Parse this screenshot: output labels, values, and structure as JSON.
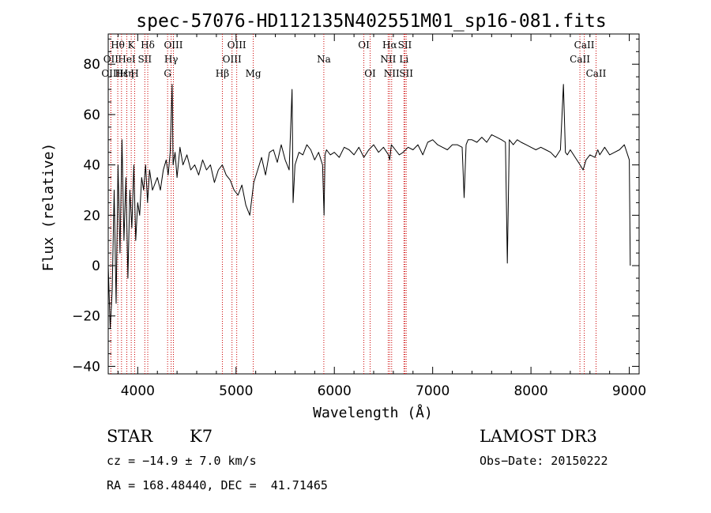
{
  "chart_data": {
    "type": "line",
    "title": "spec-57076-HD112135N402551M01_sp16-081.fits",
    "xlabel": "Wavelength (Å)",
    "ylabel": "Flux (relative)",
    "xlim": [
      3700,
      9100
    ],
    "ylim": [
      -43,
      92
    ],
    "xticks": [
      4000,
      5000,
      6000,
      7000,
      8000,
      9000
    ],
    "yticks": [
      -40,
      -20,
      0,
      20,
      40,
      60,
      80
    ],
    "series": [
      {
        "name": "flux",
        "x": [
          3700,
          3720,
          3740,
          3760,
          3780,
          3800,
          3820,
          3840,
          3860,
          3880,
          3900,
          3920,
          3940,
          3960,
          3980,
          4000,
          4020,
          4040,
          4060,
          4080,
          4100,
          4120,
          4150,
          4180,
          4200,
          4230,
          4260,
          4290,
          4310,
          4330,
          4350,
          4360,
          4380,
          4400,
          4430,
          4460,
          4500,
          4540,
          4580,
          4620,
          4660,
          4700,
          4740,
          4780,
          4820,
          4860,
          4900,
          4940,
          4980,
          5020,
          5060,
          5100,
          5140,
          5180,
          5220,
          5260,
          5300,
          5340,
          5380,
          5420,
          5460,
          5500,
          5540,
          5570,
          5580,
          5600,
          5640,
          5680,
          5720,
          5760,
          5800,
          5840,
          5880,
          5895,
          5905,
          5920,
          5960,
          6000,
          6050,
          6100,
          6150,
          6200,
          6250,
          6300,
          6350,
          6400,
          6450,
          6500,
          6550,
          6563,
          6580,
          6620,
          6660,
          6700,
          6750,
          6800,
          6850,
          6900,
          6950,
          7000,
          7050,
          7100,
          7150,
          7200,
          7250,
          7300,
          7320,
          7340,
          7360,
          7400,
          7450,
          7500,
          7550,
          7600,
          7650,
          7700,
          7740,
          7760,
          7780,
          7820,
          7860,
          7900,
          7950,
          8000,
          8050,
          8100,
          8150,
          8200,
          8250,
          8300,
          8330,
          8350,
          8370,
          8400,
          8450,
          8500,
          8530,
          8560,
          8600,
          8650,
          8680,
          8700,
          8750,
          8800,
          8850,
          8900,
          8950,
          9000,
          9010
        ],
        "values": [
          0,
          -25,
          -10,
          30,
          -15,
          40,
          5,
          50,
          10,
          35,
          -5,
          30,
          15,
          40,
          10,
          25,
          20,
          35,
          30,
          40,
          25,
          38,
          30,
          33,
          35,
          30,
          38,
          42,
          36,
          45,
          72,
          40,
          45,
          35,
          47,
          40,
          44,
          38,
          40,
          36,
          42,
          38,
          40,
          33,
          38,
          40,
          36,
          34,
          30,
          28,
          32,
          24,
          20,
          33,
          38,
          43,
          36,
          45,
          46,
          41,
          48,
          42,
          38,
          70,
          25,
          40,
          45,
          44,
          48,
          46,
          42,
          45,
          40,
          20,
          44,
          46,
          44,
          45,
          43,
          47,
          46,
          44,
          47,
          43,
          46,
          48,
          45,
          47,
          44,
          42,
          48,
          46,
          44,
          45,
          47,
          46,
          48,
          44,
          49,
          50,
          48,
          47,
          46,
          48,
          48,
          47,
          27,
          48,
          50,
          50,
          49,
          51,
          49,
          52,
          51,
          50,
          49,
          1,
          50,
          48,
          50,
          49,
          48,
          47,
          46,
          47,
          46,
          45,
          43,
          46,
          72,
          45,
          44,
          46,
          43,
          40,
          38,
          42,
          44,
          43,
          46,
          44,
          47,
          44,
          45,
          46,
          48,
          42,
          0
        ]
      }
    ],
    "lines": [
      {
        "label": "Hθ",
        "x": 3797,
        "row": 0
      },
      {
        "label": "OII",
        "x": 3727,
        "row": 1
      },
      {
        "label": "OIII",
        "x": 3727,
        "row": 2
      },
      {
        "label": "Hε",
        "x": 3835,
        "row": 2
      },
      {
        "label": "HeI",
        "x": 3889,
        "row": 1
      },
      {
        "label": "Hη",
        "x": 3889,
        "row": 2
      },
      {
        "label": "K",
        "x": 3934,
        "row": 0
      },
      {
        "label": "SII",
        "x": 4072,
        "row": 1
      },
      {
        "label": "H",
        "x": 3969,
        "row": 2
      },
      {
        "label": "Hδ",
        "x": 4102,
        "row": 0
      },
      {
        "label": "OIII",
        "x": 4363,
        "row": 0
      },
      {
        "label": "Hγ",
        "x": 4340,
        "row": 1
      },
      {
        "label": "G",
        "x": 4304,
        "row": 2
      },
      {
        "label": "Hβ",
        "x": 4861,
        "row": 2
      },
      {
        "label": "OIII",
        "x": 5007,
        "row": 0
      },
      {
        "label": "OIII",
        "x": 4959,
        "row": 1
      },
      {
        "label": "Mg",
        "x": 5175,
        "row": 2
      },
      {
        "label": "Na",
        "x": 5893,
        "row": 1
      },
      {
        "label": "OI",
        "x": 6300,
        "row": 0
      },
      {
        "label": "OI",
        "x": 6364,
        "row": 2
      },
      {
        "label": "Hα",
        "x": 6563,
        "row": 0
      },
      {
        "label": "SII",
        "x": 6717,
        "row": 0
      },
      {
        "label": "NII",
        "x": 6548,
        "row": 1
      },
      {
        "label": "Li",
        "x": 6708,
        "row": 1
      },
      {
        "label": "NII",
        "x": 6583,
        "row": 2
      },
      {
        "label": "SII",
        "x": 6731,
        "row": 2
      },
      {
        "label": "CaII",
        "x": 8542,
        "row": 0
      },
      {
        "label": "CaII",
        "x": 8498,
        "row": 1
      },
      {
        "label": "CaII",
        "x": 8662,
        "row": 2
      }
    ],
    "line_color": "#cc0000",
    "spectrum_color": "#000000"
  },
  "info": {
    "class_label": "STAR",
    "subclass": "K7",
    "survey": "LAMOST DR3",
    "cz": "cz = −14.9 ± 7.0 km/s",
    "obs_date": "Obs−Date: 20150222",
    "radec": "RA = 168.48440, DEC =  41.71465"
  }
}
